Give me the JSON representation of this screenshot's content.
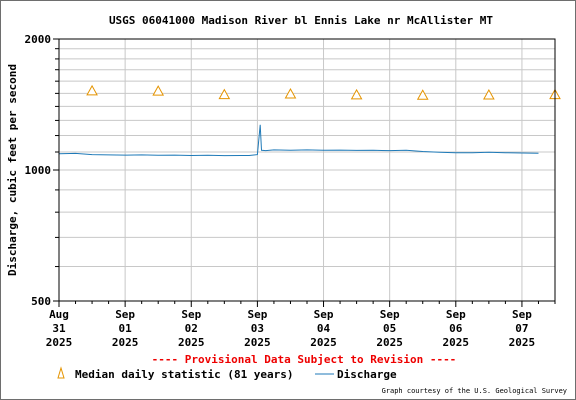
{
  "chart_data": {
    "type": "line",
    "title": "USGS 06041000 Madison River bl Ennis Lake nr McAllister MT",
    "ylabel": "Discharge, cubic feet per second",
    "xlabel": "",
    "y_scale": "log",
    "ylim": [
      500,
      2000
    ],
    "y_ticks": [
      "500",
      "1000",
      "2000"
    ],
    "x_range": [
      "2025-08-31T00:00",
      "2025-09-07T12:00"
    ],
    "x_ticks": [
      {
        "date": "2025-08-31T00:00",
        "label": [
          "Aug",
          "31",
          "2025"
        ]
      },
      {
        "date": "2025-09-01T00:00",
        "label": [
          "Sep",
          "01",
          "2025"
        ]
      },
      {
        "date": "2025-09-02T00:00",
        "label": [
          "Sep",
          "02",
          "2025"
        ]
      },
      {
        "date": "2025-09-03T00:00",
        "label": [
          "Sep",
          "03",
          "2025"
        ]
      },
      {
        "date": "2025-09-04T00:00",
        "label": [
          "Sep",
          "04",
          "2025"
        ]
      },
      {
        "date": "2025-09-05T00:00",
        "label": [
          "Sep",
          "05",
          "2025"
        ]
      },
      {
        "date": "2025-09-06T00:00",
        "label": [
          "Sep",
          "06",
          "2025"
        ]
      },
      {
        "date": "2025-09-07T00:00",
        "label": [
          "Sep",
          "07",
          "2025"
        ]
      }
    ],
    "grid": true,
    "provisional_note": "---- Provisional Data Subject to Revision ----",
    "series": [
      {
        "name": "Discharge",
        "color": "#1f7ab8",
        "style": "line",
        "points": [
          [
            "2025-08-31T00:00",
            1090
          ],
          [
            "2025-08-31T06:00",
            1092
          ],
          [
            "2025-08-31T12:00",
            1085
          ],
          [
            "2025-08-31T18:00",
            1083
          ],
          [
            "2025-09-01T00:00",
            1082
          ],
          [
            "2025-09-01T06:00",
            1083
          ],
          [
            "2025-09-01T12:00",
            1081
          ],
          [
            "2025-09-01T18:00",
            1082
          ],
          [
            "2025-09-02T00:00",
            1080
          ],
          [
            "2025-09-02T06:00",
            1081
          ],
          [
            "2025-09-02T12:00",
            1079
          ],
          [
            "2025-09-02T18:00",
            1080
          ],
          [
            "2025-09-02T21:00",
            1080
          ],
          [
            "2025-09-03T00:00",
            1085
          ],
          [
            "2025-09-03T01:00",
            1270
          ],
          [
            "2025-09-03T01:30",
            1110
          ],
          [
            "2025-09-03T03:00",
            1108
          ],
          [
            "2025-09-03T06:00",
            1112
          ],
          [
            "2025-09-03T12:00",
            1110
          ],
          [
            "2025-09-03T18:00",
            1112
          ],
          [
            "2025-09-04T00:00",
            1110
          ],
          [
            "2025-09-04T06:00",
            1111
          ],
          [
            "2025-09-04T12:00",
            1109
          ],
          [
            "2025-09-04T18:00",
            1110
          ],
          [
            "2025-09-05T00:00",
            1108
          ],
          [
            "2025-09-05T06:00",
            1110
          ],
          [
            "2025-09-05T12:00",
            1103
          ],
          [
            "2025-09-05T18:00",
            1098
          ],
          [
            "2025-09-06T00:00",
            1095
          ],
          [
            "2025-09-06T06:00",
            1096
          ],
          [
            "2025-09-06T12:00",
            1098
          ],
          [
            "2025-09-06T18:00",
            1096
          ],
          [
            "2025-09-07T00:00",
            1094
          ],
          [
            "2025-09-07T06:00",
            1093
          ]
        ]
      },
      {
        "name": "Median daily statistic (81 years)",
        "color": "#e59400",
        "style": "triangle",
        "points": [
          [
            "2025-08-31T12:00",
            1520
          ],
          [
            "2025-09-01T12:00",
            1518
          ],
          [
            "2025-09-02T12:00",
            1490
          ],
          [
            "2025-09-03T12:00",
            1495
          ],
          [
            "2025-09-04T12:00",
            1488
          ],
          [
            "2025-09-05T12:00",
            1485
          ],
          [
            "2025-09-06T12:00",
            1487
          ],
          [
            "2025-09-07T12:00",
            1490
          ]
        ]
      }
    ],
    "legend": [
      {
        "label": "Median daily statistic (81 years)",
        "symbol": "triangle",
        "color": "#e59400"
      },
      {
        "label": "Discharge",
        "symbol": "line",
        "color": "#1f7ab8"
      }
    ],
    "legend_position": "bottom"
  },
  "footer": {
    "credit": "Graph courtesy of the U.S. Geological Survey"
  }
}
